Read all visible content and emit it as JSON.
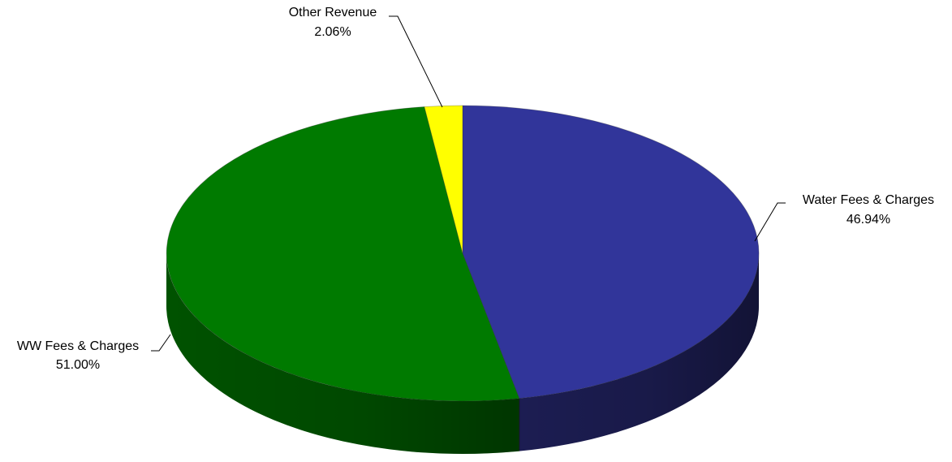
{
  "chart_data": {
    "type": "pie",
    "style": "3d",
    "categories": [
      "Water Fees & Charges",
      "WW Fees & Charges",
      "Other Revenue"
    ],
    "values": [
      46.94,
      51.0,
      2.06
    ],
    "value_labels": [
      "46.94%",
      "51.00%",
      "2.06%"
    ],
    "unit": "%",
    "colors": [
      "#31359a",
      "#007a00",
      "#ffff00"
    ],
    "side_colors": [
      "#1c1d52",
      "#005200",
      "#9a9a00"
    ],
    "title": "",
    "legend": "none",
    "labels": "outside with leader lines"
  }
}
